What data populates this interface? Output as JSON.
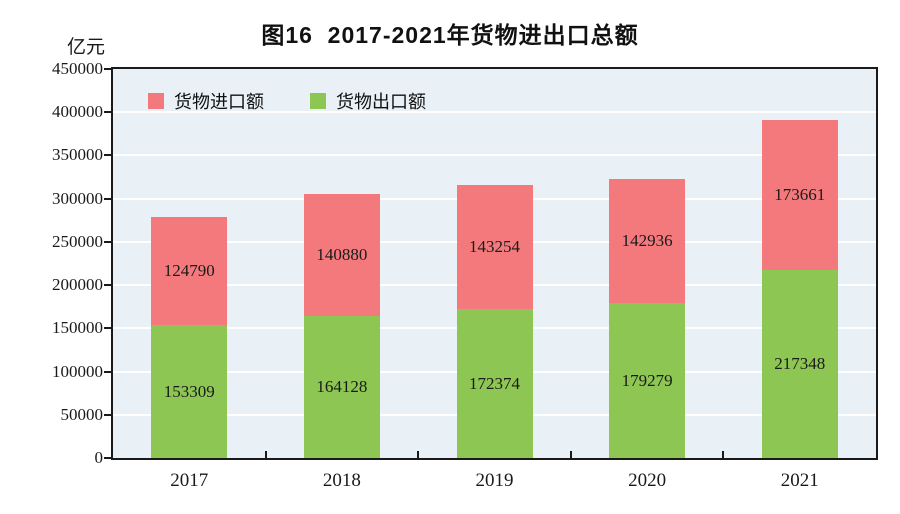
{
  "chart": {
    "title": "图16  2017-2021年货物进出口总额",
    "unit_label": "亿元",
    "colors": {
      "import_red": "#f4797c",
      "export_green": "#8dc653",
      "plot_background": "#eaf1f6",
      "gridline": "#ffffff",
      "axis": "#1a1a1a",
      "value_text": "#1a1a1a"
    }
  },
  "chart_data": {
    "type": "bar",
    "stacked": true,
    "title": "图16  2017-2021年货物进出口总额",
    "xlabel": "",
    "ylabel": "亿元",
    "categories": [
      "2017",
      "2018",
      "2019",
      "2020",
      "2021"
    ],
    "series": [
      {
        "name": "货物出口额",
        "color": "#8dc653",
        "values": [
          153309,
          164128,
          172374,
          179279,
          217348
        ]
      },
      {
        "name": "货物进口额",
        "color": "#f4797c",
        "values": [
          124790,
          140880,
          143254,
          142936,
          173661
        ]
      }
    ],
    "legend": [
      {
        "label": "货物进口额",
        "color": "#f4797c",
        "series": "import"
      },
      {
        "label": "货物出口额",
        "color": "#8dc653",
        "series": "export"
      }
    ],
    "ylim": [
      0,
      450000
    ],
    "ytick_step": 50000,
    "yticks": [
      0,
      50000,
      100000,
      150000,
      200000,
      250000,
      300000,
      350000,
      400000,
      450000
    ],
    "grid": true,
    "grid_color": "#ffffff",
    "plot_background": "#eaf1f6",
    "legend_position": "top-left-inside",
    "value_labels": "inside-center"
  }
}
